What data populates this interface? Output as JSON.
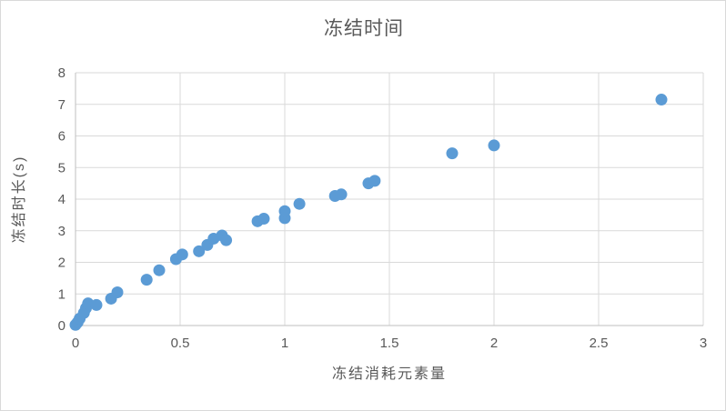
{
  "chart_data": {
    "type": "scatter",
    "title": "冻结时间",
    "xlabel": "冻结消耗元素量",
    "ylabel": "冻结时长(s)",
    "xlim": [
      0,
      3
    ],
    "ylim": [
      0,
      8
    ],
    "xticks": [
      0,
      0.5,
      1,
      1.5,
      2,
      2.5,
      3
    ],
    "xtick_labels": [
      "0",
      "0.5",
      "1",
      "1.5",
      "2",
      "2.5",
      "3"
    ],
    "yticks": [
      0,
      1,
      2,
      3,
      4,
      5,
      6,
      7,
      8
    ],
    "ytick_labels": [
      "0",
      "1",
      "2",
      "3",
      "4",
      "5",
      "6",
      "7",
      "8"
    ],
    "grid": true,
    "legend": "none",
    "series": [
      {
        "name": "冻结时间",
        "points": [
          [
            0.0,
            0.02
          ],
          [
            0.01,
            0.1
          ],
          [
            0.02,
            0.22
          ],
          [
            0.04,
            0.4
          ],
          [
            0.05,
            0.55
          ],
          [
            0.06,
            0.7
          ],
          [
            0.1,
            0.65
          ],
          [
            0.17,
            0.85
          ],
          [
            0.2,
            1.05
          ],
          [
            0.34,
            1.45
          ],
          [
            0.4,
            1.75
          ],
          [
            0.48,
            2.1
          ],
          [
            0.51,
            2.25
          ],
          [
            0.59,
            2.35
          ],
          [
            0.63,
            2.55
          ],
          [
            0.66,
            2.75
          ],
          [
            0.7,
            2.85
          ],
          [
            0.72,
            2.7
          ],
          [
            0.87,
            3.3
          ],
          [
            0.9,
            3.38
          ],
          [
            1.0,
            3.4
          ],
          [
            1.0,
            3.62
          ],
          [
            1.07,
            3.85
          ],
          [
            1.24,
            4.1
          ],
          [
            1.27,
            4.15
          ],
          [
            1.4,
            4.5
          ],
          [
            1.43,
            4.58
          ],
          [
            1.8,
            5.45
          ],
          [
            2.0,
            5.7
          ],
          [
            2.8,
            7.15
          ]
        ]
      }
    ],
    "colors": {
      "marker": "#5b9bd5",
      "gridline": "#d9d9d9",
      "axis_line": "#bfbfbf",
      "text": "#595959",
      "background": "#ffffff",
      "frame_border": "#d9d9d9"
    },
    "marker_radius_px": 6.5,
    "tick_font_size_px": 15
  }
}
